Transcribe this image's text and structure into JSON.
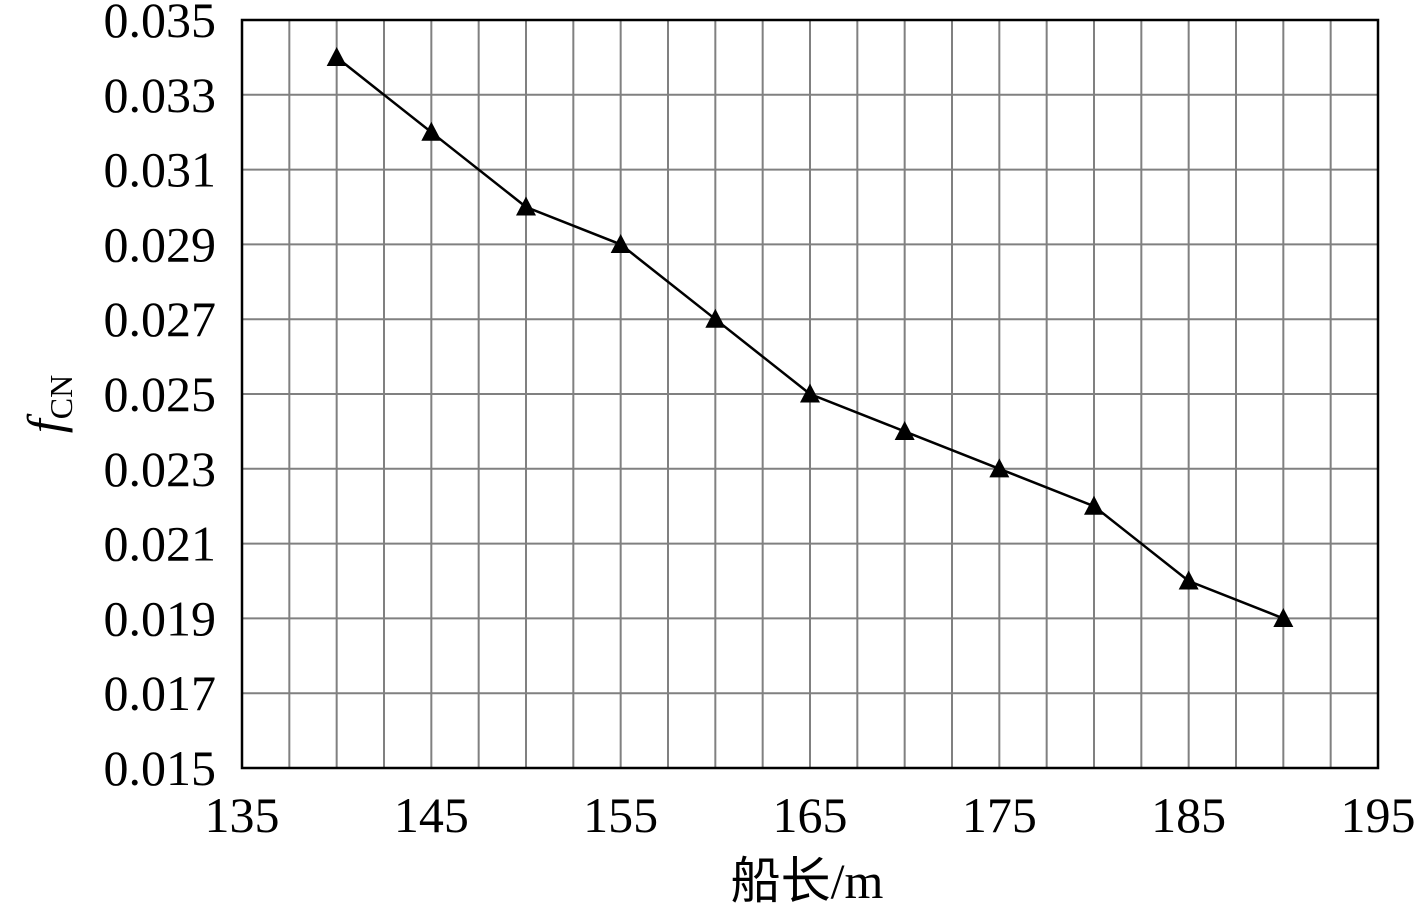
{
  "chart_data": {
    "type": "line",
    "xlabel": "船长/m",
    "ylabel": {
      "main": "f",
      "sub": "CN"
    },
    "xlim": [
      135,
      195
    ],
    "ylim": [
      0.015,
      0.035
    ],
    "x_ticks": [
      135,
      145,
      155,
      165,
      175,
      185,
      195
    ],
    "x_tick_labels": [
      "135",
      "145",
      "155",
      "165",
      "175",
      "185",
      "195"
    ],
    "y_ticks": [
      0.015,
      0.017,
      0.019,
      0.021,
      0.023,
      0.025,
      0.027,
      0.029,
      0.031,
      0.033,
      0.035
    ],
    "y_tick_labels": [
      "0.015",
      "0.017",
      "0.019",
      "0.021",
      "0.023",
      "0.025",
      "0.027",
      "0.029",
      "0.031",
      "0.033",
      "0.035"
    ],
    "x_grid_step": 2.5,
    "y_grid_step": 0.002,
    "grid": true,
    "marker": "triangle",
    "series": [
      {
        "x": [
          140,
          145,
          150,
          155,
          160,
          165,
          170,
          175,
          180,
          185,
          190
        ],
        "values": [
          0.034,
          0.032,
          0.03,
          0.029,
          0.027,
          0.025,
          0.024,
          0.023,
          0.022,
          0.02,
          0.019
        ]
      }
    ]
  }
}
